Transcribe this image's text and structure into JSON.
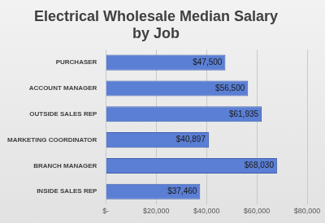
{
  "chart_data": {
    "type": "bar",
    "orientation": "horizontal",
    "title": [
      "Electrical Wholesale Median Salary",
      "by Job"
    ],
    "categories": [
      "PURCHASER",
      "ACCOUNT MANAGER",
      "OUTSIDE SALES REP",
      "MARKETING COORDINATOR",
      "BRANCH MANAGER",
      "INSIDE SALES REP"
    ],
    "values": [
      47500,
      56500,
      61935,
      40897,
      68030,
      37460
    ],
    "value_labels": [
      "$47,500",
      "$56,500",
      "$61,935",
      "$40,897",
      "$68,030",
      "$37,460"
    ],
    "data_labels": true,
    "color": "#5b7fd4",
    "xlim": [
      0,
      80000
    ],
    "xticks": [
      {
        "value": 0,
        "label": "$-"
      },
      {
        "value": 20000,
        "label": "$20,000"
      },
      {
        "value": 40000,
        "label": "$40,000"
      },
      {
        "value": 60000,
        "label": "$60,000"
      },
      {
        "value": 80000,
        "label": "$80,000"
      }
    ],
    "grid": true
  }
}
